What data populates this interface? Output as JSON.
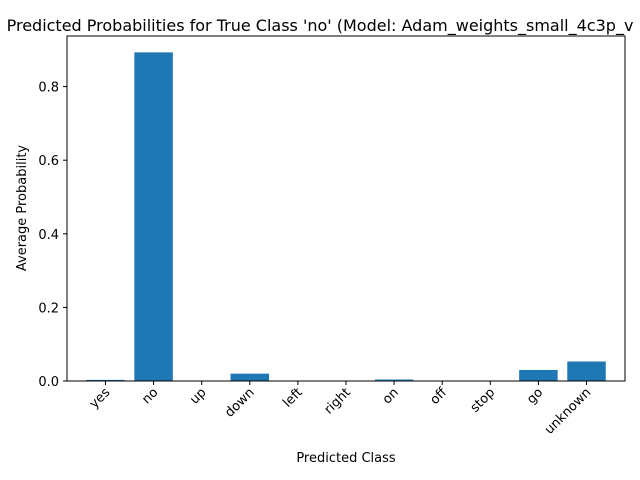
{
  "chart_data": {
    "type": "bar",
    "title": "Predicted Probabilities for True Class 'no' (Model: Adam_weights_small_4c3p_v",
    "xlabel": "Predicted Class",
    "ylabel": "Average Probability",
    "categories": [
      "yes",
      "no",
      "up",
      "down",
      "left",
      "right",
      "on",
      "off",
      "stop",
      "go",
      "unknown"
    ],
    "values": [
      0.003,
      0.893,
      0.001,
      0.02,
      0.001,
      0.001,
      0.004,
      0.001,
      0.001,
      0.03,
      0.053
    ],
    "ylim": [
      0,
      0.9375
    ],
    "yticks": [
      0.0,
      0.2,
      0.4,
      0.6,
      0.8
    ],
    "ytick_labels": [
      "0.0",
      "0.2",
      "0.4",
      "0.6",
      "0.8"
    ],
    "bar_color": "#1f77b4",
    "grid": false,
    "xtick_rotation": -45
  }
}
